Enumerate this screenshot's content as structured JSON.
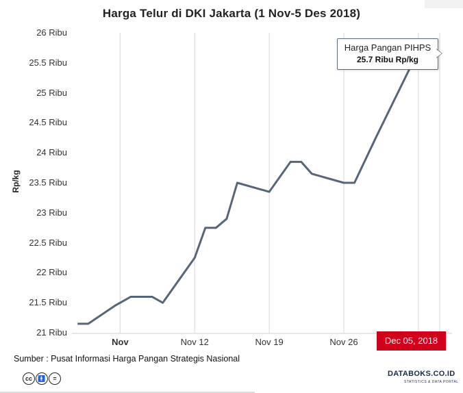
{
  "chart_data": {
    "type": "line",
    "title": "Harga Telur di DKI Jakarta (1 Nov-5 Des 2018)",
    "ylabel": "Rp/kg",
    "xlabel": "",
    "ylim": [
      21,
      26
    ],
    "y_tick_values": [
      21,
      21.5,
      22,
      22.5,
      23,
      23.5,
      24,
      24.5,
      25,
      25.5,
      26
    ],
    "y_tick_labels": [
      "21 Ribu",
      "21.5 Ribu",
      "22 Ribu",
      "22.5 Ribu",
      "23 Ribu",
      "23.5 Ribu",
      "24 Ribu",
      "24.5 Ribu",
      "25 Ribu",
      "25.5 Ribu",
      "26 Ribu"
    ],
    "x_range_days": [
      0,
      35
    ],
    "x_ticks": [
      {
        "day": 4,
        "label": "Nov",
        "bold": true
      },
      {
        "day": 11,
        "label": "Nov 12",
        "bold": false
      },
      {
        "day": 18,
        "label": "Nov 19",
        "bold": false
      },
      {
        "day": 25,
        "label": "Nov 26",
        "bold": false
      },
      {
        "day": 32,
        "label": "",
        "bold": false
      },
      {
        "day": 34,
        "label": "",
        "bold": false
      }
    ],
    "series": [
      {
        "name": "Harga Pangan PIHPS",
        "color": "#56657a",
        "points": [
          {
            "x": 0,
            "y": 21.15
          },
          {
            "x": 1,
            "y": 21.15
          },
          {
            "x": 3.5,
            "y": 21.45
          },
          {
            "x": 5,
            "y": 21.6
          },
          {
            "x": 7,
            "y": 21.6
          },
          {
            "x": 8,
            "y": 21.5
          },
          {
            "x": 11,
            "y": 22.25
          },
          {
            "x": 12,
            "y": 22.75
          },
          {
            "x": 13,
            "y": 22.75
          },
          {
            "x": 14,
            "y": 22.9
          },
          {
            "x": 15,
            "y": 23.5
          },
          {
            "x": 18,
            "y": 23.35
          },
          {
            "x": 20,
            "y": 23.85
          },
          {
            "x": 21,
            "y": 23.85
          },
          {
            "x": 22,
            "y": 23.65
          },
          {
            "x": 25,
            "y": 23.5
          },
          {
            "x": 26,
            "y": 23.5
          },
          {
            "x": 28,
            "y": 24.25
          },
          {
            "x": 32,
            "y": 25.7
          }
        ]
      }
    ],
    "tooltip": {
      "series_name": "Harga Pangan PIHPS",
      "value_text": "25.7 Ribu Rp/kg"
    },
    "crosshair_label": "Dec 05, 2018"
  },
  "footer": {
    "source": "Sumber : Pusat Informasi Harga Pangan Strategis Nasional",
    "brand": "DATABOKS.CO.ID",
    "brand_sub": "STATISTICS & DATA PORTAL"
  },
  "license_icons": [
    "cc-icon",
    "by-icon",
    "nd-icon"
  ]
}
